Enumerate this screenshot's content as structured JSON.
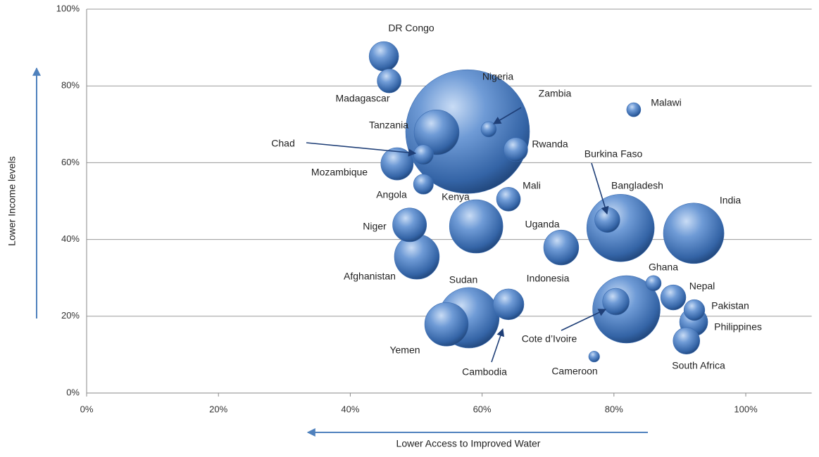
{
  "chart_data": {
    "type": "bubble",
    "x_label": "Lower Access to Improved Water",
    "y_label": "Lower Income levels",
    "xlim": [
      0,
      110
    ],
    "ylim": [
      0,
      100
    ],
    "xticks": [
      {
        "value": 0,
        "label": "0%"
      },
      {
        "value": 20,
        "label": "20%"
      },
      {
        "value": 40,
        "label": "40%"
      },
      {
        "value": 60,
        "label": "60%"
      },
      {
        "value": 80,
        "label": "80%"
      },
      {
        "value": 100,
        "label": "100%"
      }
    ],
    "yticks": [
      {
        "value": 0,
        "label": "0%"
      },
      {
        "value": 20,
        "label": "20%"
      },
      {
        "value": 40,
        "label": "40%"
      },
      {
        "value": 60,
        "label": "60%"
      },
      {
        "value": 80,
        "label": "80%"
      },
      {
        "value": 100,
        "label": "100%"
      }
    ],
    "grid": true,
    "color": "#3a6bb0",
    "names": [
      "DR Congo",
      "Madagascar",
      "Nigeria",
      "Zambia",
      "Tanzania",
      "Rwanda",
      "Chad",
      "Mozambique",
      "Angola",
      "Malawi",
      "Mali",
      "Kenya",
      "Niger",
      "Afghanistan",
      "Uganda",
      "Bangladesh",
      "Burkina Faso",
      "India",
      "Ghana",
      "Nepal",
      "Pakistan",
      "Philippines",
      "South Africa",
      "Cote d’Ivoire",
      "Indonesia",
      "Cambodia",
      "Sudan",
      "Yemen",
      "Cameroon"
    ],
    "x": [
      45.1,
      45.9,
      57.8,
      61.0,
      53.1,
      65.1,
      51.1,
      47.1,
      51.1,
      83.0,
      64.0,
      59.1,
      49.0,
      50.1,
      72.0,
      81.0,
      79.0,
      92.1,
      86.0,
      89.0,
      92.2,
      92.1,
      91.0,
      80.3,
      81.9,
      64.0,
      58.0,
      54.6,
      77.0
    ],
    "y": [
      87.7,
      81.3,
      68.1,
      68.7,
      67.9,
      63.4,
      62.1,
      59.7,
      54.4,
      73.8,
      50.5,
      43.4,
      43.8,
      35.5,
      37.9,
      43.0,
      45.1,
      41.6,
      28.6,
      24.9,
      21.6,
      18.5,
      13.6,
      23.8,
      21.8,
      23.1,
      19.6,
      17.9,
      9.5
    ],
    "sizes": [
      44,
      29,
      774,
      12,
      102,
      29,
      20,
      53,
      20,
      10,
      29,
      144,
      58,
      102,
      62,
      230,
      32,
      185,
      12,
      32,
      22,
      40,
      36,
      36,
      230,
      48,
      185,
      96,
      6
    ]
  }
}
